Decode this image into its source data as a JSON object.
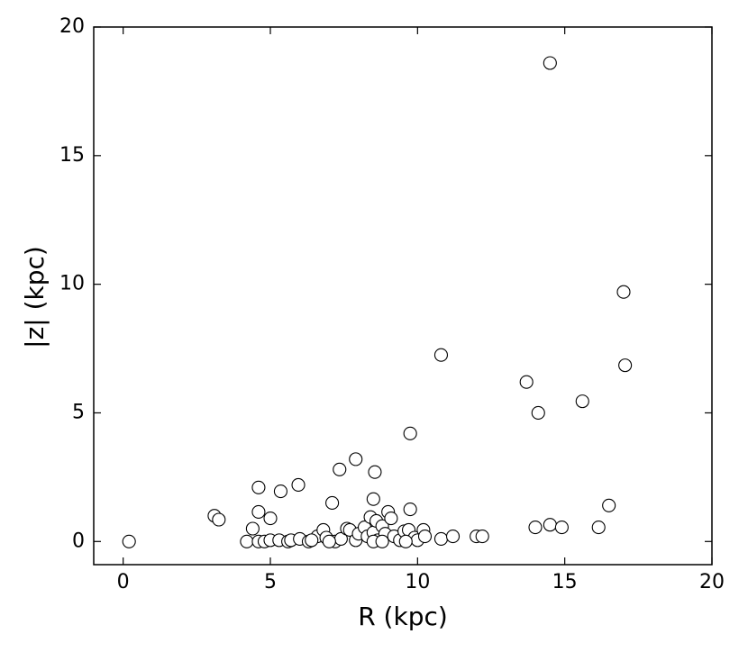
{
  "chart_data": {
    "type": "scatter",
    "xlabel": "R (kpc)",
    "ylabel": "|z| (kpc)",
    "xlim": [
      -1,
      20
    ],
    "ylim": [
      -0.9,
      20
    ],
    "xticks": [
      0,
      5,
      10,
      15,
      20
    ],
    "yticks": [
      0,
      5,
      10,
      15,
      20
    ],
    "marker_color": "#ffffff",
    "edge_color": "#000000",
    "x": [
      0.2,
      3.1,
      3.25,
      4.4,
      4.6,
      4.6,
      5.0,
      5.35,
      5.95,
      7.1,
      7.35,
      7.9,
      8.55,
      8.5,
      9.75,
      9.75,
      10.8,
      13.7,
      14.1,
      14.5,
      15.6,
      17.0,
      17.05,
      16.5,
      16.15,
      14.0,
      14.5,
      14.9,
      4.2,
      4.6,
      4.8,
      5.0,
      5.3,
      5.6,
      5.7,
      6.0,
      6.3,
      6.6,
      6.8,
      6.9,
      7.2,
      7.4,
      7.6,
      7.7,
      7.9,
      8.0,
      8.2,
      8.3,
      8.4,
      8.5,
      8.6,
      8.65,
      8.8,
      8.9,
      9.0,
      9.1,
      9.2,
      9.4,
      9.55,
      9.7,
      9.9,
      10.0,
      10.2,
      10.25,
      10.8,
      11.2,
      12.0,
      12.2,
      8.5,
      7.0,
      6.4,
      9.6,
      8.8
    ],
    "y": [
      0.0,
      1.0,
      0.85,
      0.5,
      2.1,
      1.15,
      0.9,
      1.95,
      2.2,
      1.5,
      2.8,
      3.2,
      2.7,
      1.65,
      1.25,
      4.2,
      7.25,
      6.2,
      5.0,
      18.6,
      5.45,
      9.7,
      6.85,
      1.4,
      0.55,
      0.55,
      0.65,
      0.55,
      0.0,
      0.0,
      0.0,
      0.05,
      0.05,
      0.0,
      0.05,
      0.1,
      0.0,
      0.2,
      0.45,
      0.15,
      0.0,
      0.1,
      0.5,
      0.45,
      0.05,
      0.3,
      0.55,
      0.2,
      0.95,
      0.35,
      0.8,
      0.05,
      0.6,
      0.3,
      1.15,
      0.9,
      0.2,
      0.05,
      0.4,
      0.45,
      0.15,
      0.05,
      0.45,
      0.2,
      0.1,
      0.2,
      0.2,
      0.2,
      0.0,
      0.0,
      0.05,
      0.0,
      0.0
    ]
  }
}
